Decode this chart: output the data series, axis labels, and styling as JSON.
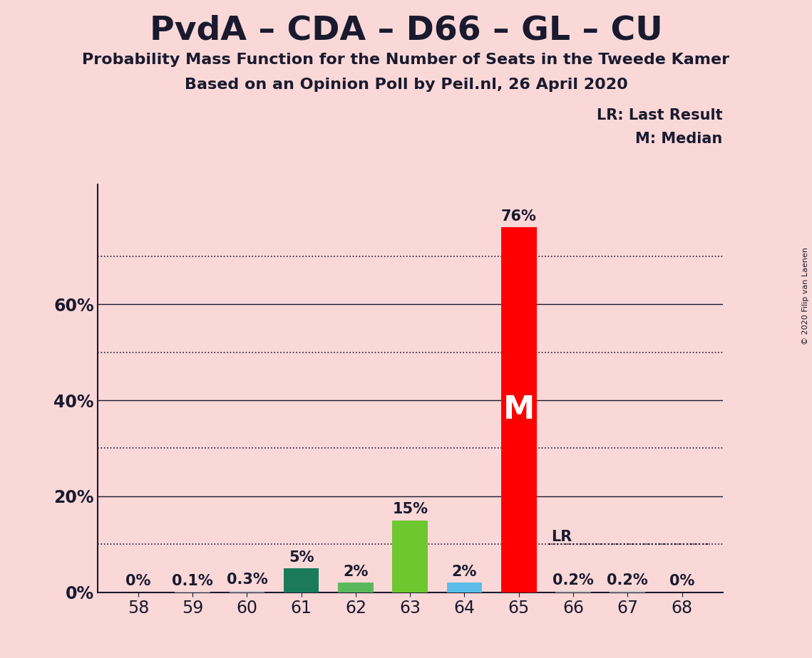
{
  "title": "PvdA – CDA – D66 – GL – CU",
  "subtitle1": "Probability Mass Function for the Number of Seats in the Tweede Kamer",
  "subtitle2": "Based on an Opinion Poll by Peil.nl, 26 April 2020",
  "background_color": "#FAD8D8",
  "seats": [
    58,
    59,
    60,
    61,
    62,
    63,
    64,
    65,
    66,
    67,
    68
  ],
  "values": [
    0.0,
    0.1,
    0.3,
    5.0,
    2.0,
    15.0,
    2.0,
    76.0,
    0.2,
    0.2,
    0.0
  ],
  "bar_colors": [
    "#E8A0A0",
    "#c0c0c0",
    "#c0c0c0",
    "#1a7a5a",
    "#5cb85c",
    "#6dc72e",
    "#5bbde8",
    "#ff0000",
    "#c0c0c0",
    "#c0c0c0",
    "#c0c0c0"
  ],
  "median_seat": 65,
  "lr_value": 10.0,
  "ylim_max": 85,
  "copyright_text": "© 2020 Filip van Laenen",
  "legend_lr": "LR: Last Result",
  "legend_m": "M: Median",
  "bar_width": 0.65,
  "title_fontsize": 34,
  "subtitle_fontsize": 16,
  "tick_fontsize": 17,
  "label_fontsize": 15,
  "text_color": "#1a1a2e"
}
